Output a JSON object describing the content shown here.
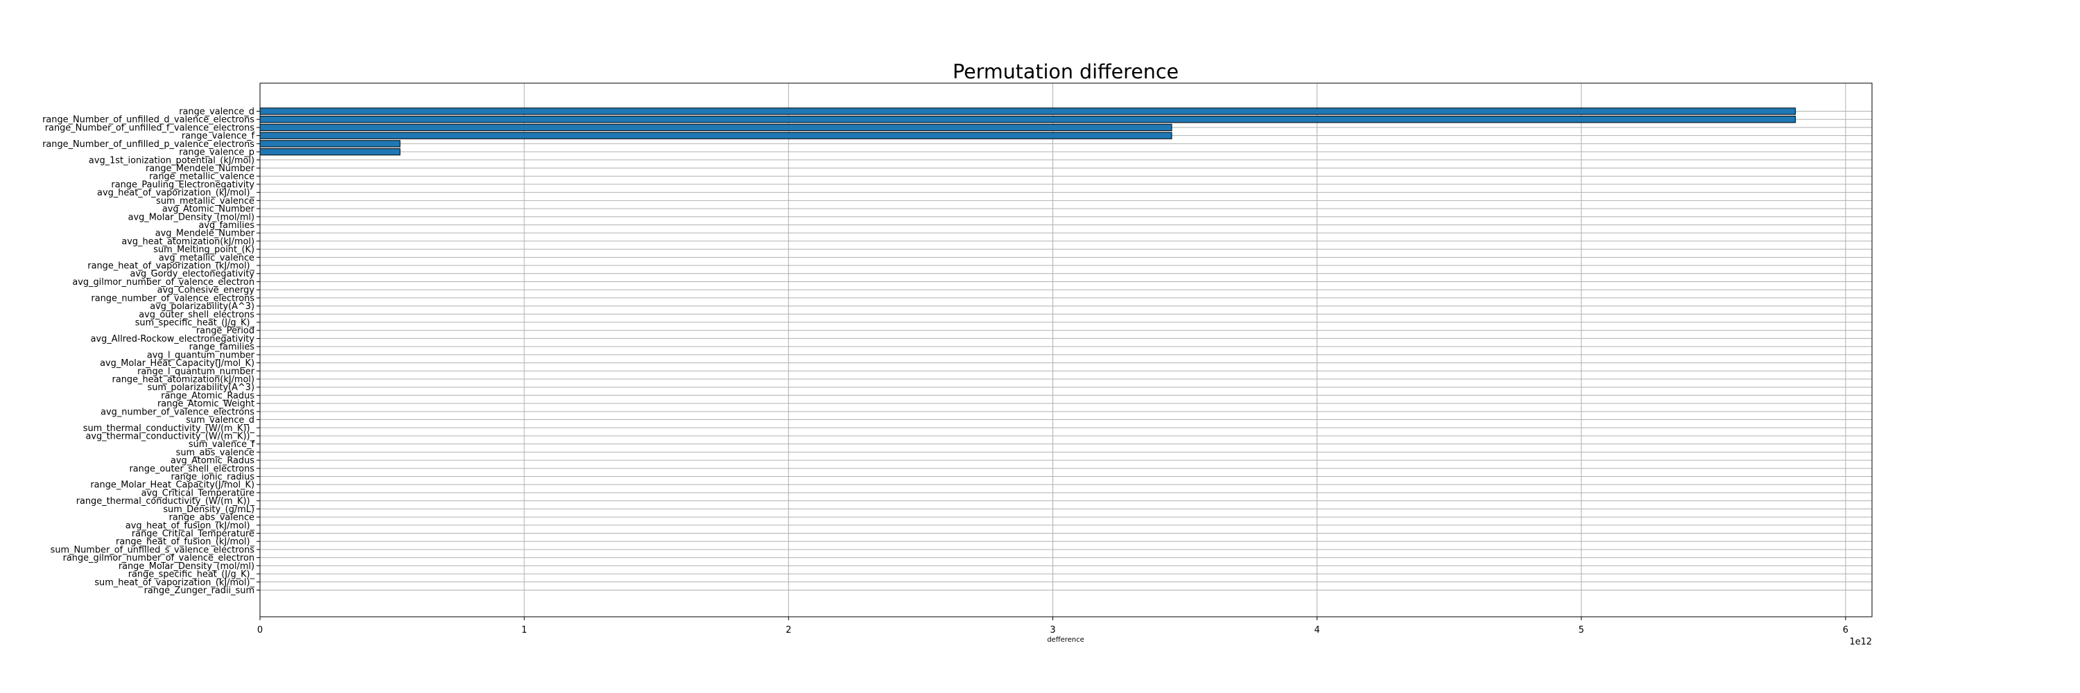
{
  "chart_data": {
    "type": "bar",
    "orientation": "horizontal",
    "title": "Permutation difference",
    "xlabel": "defference",
    "ylabel": "",
    "x_offset_label": "1e12",
    "x_scale": 1000000000000,
    "xlim": [
      0,
      6.1
    ],
    "xticks": [
      0,
      1,
      2,
      3,
      4,
      5,
      6
    ],
    "grid": true,
    "bar_color": "#1f77b4",
    "bar_edge_color": "#000000",
    "categories": [
      "range_valence_d",
      "range_Number_of_unfilled_d_valence_electrons",
      "range_Number_of_unfilled_f_valence_electrons",
      "range_valence_f",
      "range_Number_of_unfilled_p_valence_electrons",
      "range_valence_p",
      "avg_1st_ionization_potential_(kJ/mol)",
      "range_Mendele_Number",
      "range_metallic_valence",
      "range_Pauling_Electronegativity",
      "avg_heat_of_vaporization_(kJ/mol)_",
      "sum_metallic_valence",
      "avg_Atomic_Number",
      "avg_Molar_Density_(mol/ml)",
      "avg_families",
      "avg_Mendele_Number",
      "avg_heat_atomization(kJ/mol)",
      "sum_Melting_point_(K)",
      "avg_metallic_valence",
      "range_heat_of_vaporization_(kJ/mol)_",
      "avg_Gordy_electonegativity",
      "avg_gilmor_number_of_valence_electron",
      "avg_Cohesive_energy",
      "range_number_of_valence_electrons",
      "avg_polarizability(A^3)",
      "avg_outer_shell_electrons",
      "sum_specific_heat_(J/g_K)_",
      "range_Period",
      "avg_Allred-Rockow_electronegativity",
      "range_families",
      "avg_l_quantum_number",
      "avg_Molar_Heat_Capacity(J/mol_K)",
      "range_l_quantum_number",
      "range_heat_atomization(kJ/mol)",
      "sum_polarizability(A^3)",
      "range_Atomic_Radus",
      "range_Atomic_Weight",
      "avg_number_of_valence_electrons",
      "sum_valence_d",
      "sum_thermal_conductivity_(W/(m_K))_",
      "avg_thermal_conductivity_(W/(m_K))_",
      "sum_valence_f",
      "sum_abs_valence",
      "avg_Atomic_Radus",
      "range_outer_shell_electrons",
      "range_ionic_radius",
      "range_Molar_Heat_Capacity(J/mol_K)",
      "avg_Critical_Temperature",
      "range_thermal_conductivity_(W/(m_K))_",
      "sum_Density_(g/mL)",
      "range_abs_valence",
      "avg_heat_of_fusion_(kJ/mol)_",
      "range_Critical_Temperature",
      "range_heat_of_fusion_(kJ/mol)_",
      "sum_Number_of_unfilled_s_valence_electrons",
      "range_gilmor_number_of_valence_electron",
      "range_Molar_Density_(mol/ml)",
      "range_specific_heat_(J/g_K)_",
      "sum_heat_of_vaporization_(kJ/mol)_",
      "range_Zunger_radii_sum"
    ],
    "values": [
      5.81,
      5.81,
      3.45,
      3.45,
      0.53,
      0.53,
      0,
      0,
      0,
      0,
      0,
      0,
      0,
      0,
      0,
      0,
      0,
      0,
      0,
      0,
      0,
      0,
      0,
      0,
      0,
      0,
      0,
      0,
      0,
      0,
      0,
      0,
      0,
      0,
      0,
      0,
      0,
      0,
      0,
      0,
      0,
      0,
      0,
      0,
      0,
      0,
      0,
      0,
      0,
      0,
      0,
      0,
      0,
      0,
      0,
      0,
      0,
      0,
      0,
      0
    ]
  }
}
